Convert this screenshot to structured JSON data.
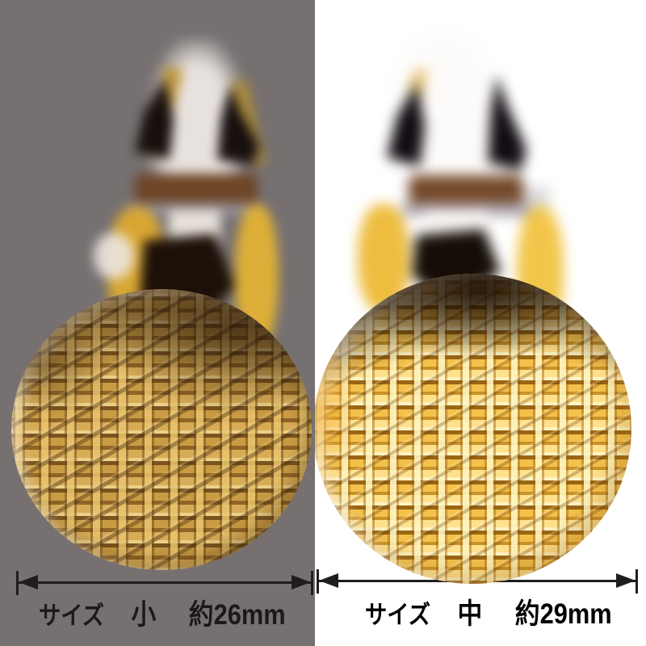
{
  "left_panel": {
    "background_color": "#767071",
    "caption": {
      "size_label": "サイズ",
      "size_value": "小",
      "dimension": "約26mm"
    }
  },
  "right_panel": {
    "background_color": "#ffffff",
    "caption": {
      "size_label": "サイズ",
      "size_value": "中",
      "dimension": "約29mm"
    }
  },
  "colors": {
    "gold_bright": "#f8c84c",
    "gold_muted": "#b68c3c",
    "annotation": "#1f1d1e"
  }
}
